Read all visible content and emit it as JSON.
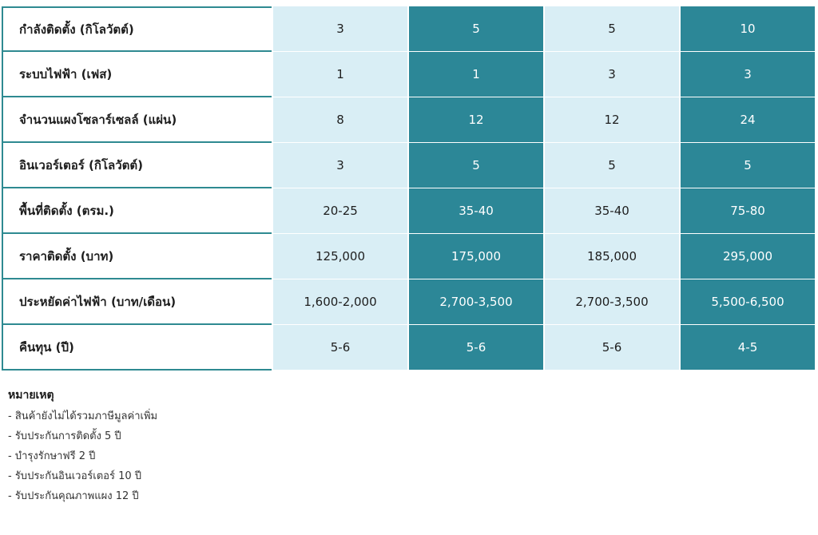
{
  "table": {
    "rows": [
      {
        "label": "กำลังติดตั้ง (กิโลวัตต์)",
        "values": [
          "3",
          "5",
          "5",
          "10"
        ]
      },
      {
        "label": "ระบบไฟฟ้า (เฟส)",
        "values": [
          "1",
          "1",
          "3",
          "3"
        ]
      },
      {
        "label": "จำนวนแผงโซลาร์เซลล์ (แผ่น)",
        "values": [
          "8",
          "12",
          "12",
          "24"
        ]
      },
      {
        "label": "อินเวอร์เตอร์ (กิโลวัตต์)",
        "values": [
          "3",
          "5",
          "5",
          "5"
        ]
      },
      {
        "label": "พื้นที่ติดตั้ง (ตรม.)",
        "values": [
          "20-25",
          "35-40",
          "35-40",
          "75-80"
        ]
      },
      {
        "label": "ราคาติดตั้ง (บาท)",
        "values": [
          "125,000",
          "175,000",
          "185,000",
          "295,000"
        ]
      },
      {
        "label": "ประหยัดค่าไฟฟ้า (บาท/เดือน)",
        "values": [
          "1,600-2,000",
          "2,700-3,500",
          "2,700-3,500",
          "5,500-6,500"
        ]
      },
      {
        "label": "คืนทุน (ปี)",
        "values": [
          "5-6",
          "5-6",
          "5-6",
          "4-5"
        ]
      }
    ],
    "colors": {
      "light_column": "#d9eef5",
      "dark_column": "#2c8797",
      "border": "#2e8a91"
    }
  },
  "notes": {
    "title": "หมายเหตุ",
    "items": [
      "สินค้ายังไม่ได้รวมภาษีมูลค่าเพิ่ม",
      "รับประกันการติดตั้ง 5 ปี",
      "บำรุงรักษาฟรี 2 ปี",
      "รับประกันอินเวอร์เตอร์ 10 ปี",
      "รับประกันคุณภาพแผง 12 ปี"
    ]
  }
}
